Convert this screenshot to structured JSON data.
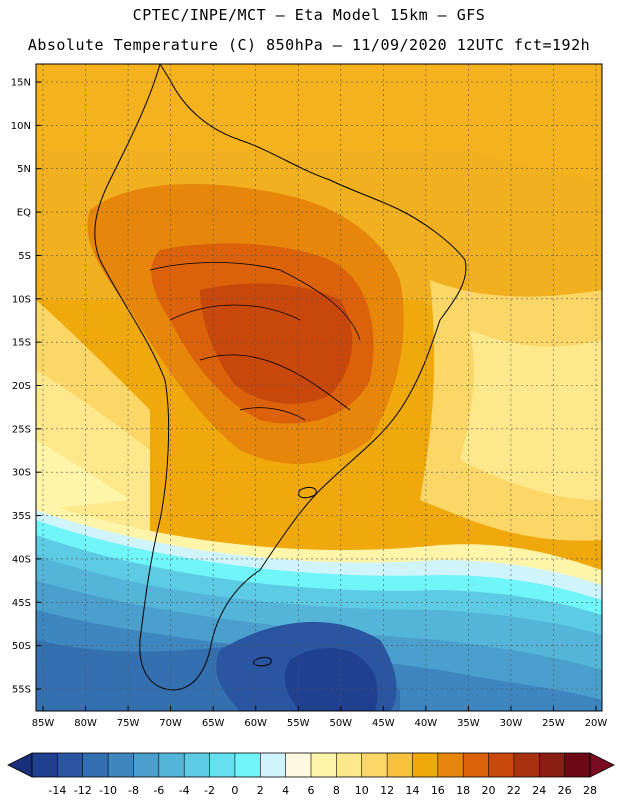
{
  "header": {
    "line1": "CPTEC/INPE/MCT –  Eta Model 15km – GFS",
    "line2": "Absolute Temperature (C) 850hPa – 11/09/2020 12UTC fct=192h"
  },
  "map": {
    "lat_labels": [
      "15N",
      "10N",
      "5N",
      "EQ",
      "5S",
      "10S",
      "15S",
      "20S",
      "25S",
      "30S",
      "35S",
      "40S",
      "45S",
      "50S",
      "55S"
    ],
    "lon_labels": [
      "85W",
      "80W",
      "75W",
      "70W",
      "65W",
      "60W",
      "55W",
      "50W",
      "45W",
      "40W",
      "35W",
      "30W",
      "25W",
      "20W"
    ],
    "lat_values": [
      15,
      10,
      5,
      0,
      -5,
      -10,
      -15,
      -20,
      -25,
      -30,
      -35,
      -40,
      -45,
      -50,
      -55
    ],
    "lon_values": [
      -85,
      -80,
      -75,
      -70,
      -65,
      -60,
      -55,
      -50,
      -45,
      -40,
      -35,
      -30,
      -25,
      -20
    ]
  },
  "colorbar": {
    "tick_labels": [
      "-14",
      "-12",
      "-10",
      "-8",
      "-6",
      "-4",
      "-2",
      "0",
      "2",
      "4",
      "6",
      "8",
      "10",
      "12",
      "14",
      "16",
      "18",
      "20",
      "22",
      "24",
      "26",
      "28"
    ],
    "colors": [
      "#1f3f8f",
      "#2a55a0",
      "#3470b0",
      "#3d86bf",
      "#4a9fcd",
      "#55b5d8",
      "#5dcbe3",
      "#65e0ee",
      "#70f5f8",
      "#d0f4fb",
      "#fff8e0",
      "#fff5a8",
      "#fde98c",
      "#fbd768",
      "#f6c23e",
      "#f0a90c",
      "#e6870c",
      "#db620a",
      "#c8470a",
      "#a83210",
      "#8a1e12",
      "#6b0a14"
    ],
    "low_end_color": "#1a2f7a",
    "high_end_color": "#7a0a20"
  }
}
